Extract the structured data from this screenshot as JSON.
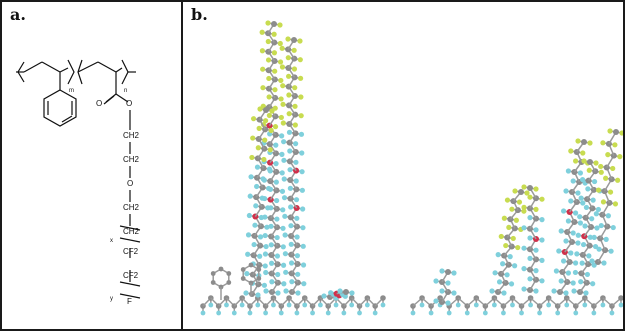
{
  "panel_a": {
    "label": "a.",
    "structure": {
      "subscript_m": "m",
      "subscript_n": "n",
      "carbonyl_o": "O",
      "ester_o": "O",
      "chain": [
        "CH2",
        "CH2",
        "O",
        "CH2",
        "CH2",
        "CF2",
        "CF2",
        "F"
      ],
      "repeat_x": "x",
      "repeat_y": "y"
    }
  },
  "panel_b": {
    "label": "b.",
    "colors": {
      "carbon": "#8c8c8c",
      "hydrogen": "#7fd0dc",
      "oxygen": "#d0304a",
      "fluorine": "#c8dc50",
      "bond": "#9a9a9a"
    }
  }
}
